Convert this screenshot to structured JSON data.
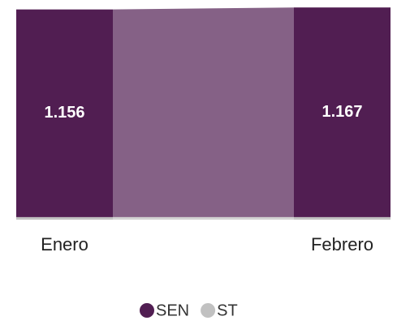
{
  "chart_data": {
    "type": "ribbon",
    "categories": [
      "Enero",
      "Febrero"
    ],
    "series": [
      {
        "name": "ST",
        "color": "#c1c1c1",
        "values": [
          14,
          14
        ]
      },
      {
        "name": "SEN",
        "color": "#511e52",
        "values": [
          1156,
          1167
        ],
        "value_labels": [
          "1.156",
          "1.167"
        ]
      }
    ],
    "ylim": [
      0,
      1200
    ],
    "legend": "bottom"
  }
}
